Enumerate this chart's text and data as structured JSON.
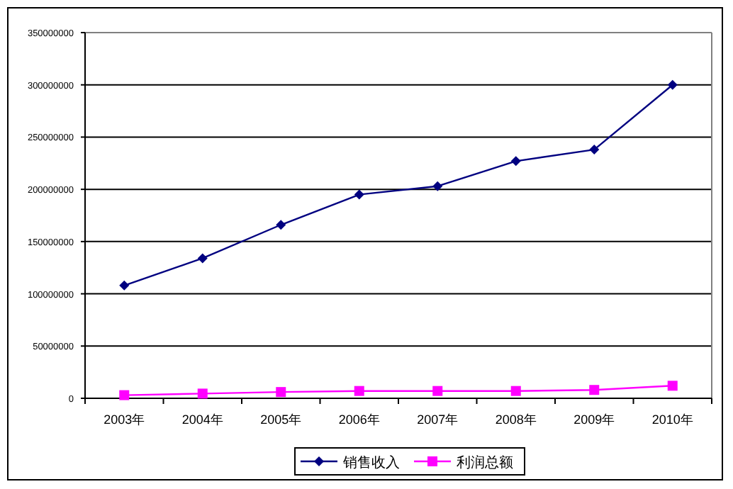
{
  "chart_data": {
    "type": "line",
    "categories": [
      "2003年",
      "2004年",
      "2005年",
      "2006年",
      "2007年",
      "2008年",
      "2009年",
      "2010年"
    ],
    "series": [
      {
        "name": "销售收入",
        "color": "#000080",
        "marker": "diamond",
        "values": [
          108000000,
          134000000,
          166000000,
          195000000,
          203000000,
          227000000,
          238000000,
          300000000
        ]
      },
      {
        "name": "利润总额",
        "color": "#ff00ff",
        "marker": "square",
        "values": [
          3000000,
          4500000,
          6000000,
          7000000,
          7000000,
          7000000,
          8000000,
          12000000
        ]
      }
    ],
    "ylim": [
      0,
      350000000
    ],
    "yticks": [
      0,
      50000000,
      100000000,
      150000000,
      200000000,
      250000000,
      300000000,
      350000000
    ],
    "grid": "y",
    "legend": "bottom"
  }
}
